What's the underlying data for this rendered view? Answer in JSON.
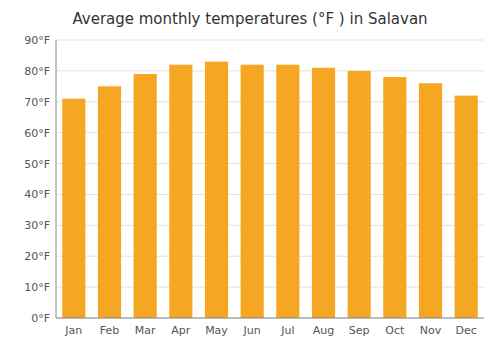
{
  "chart_data": {
    "type": "bar",
    "title": "Average monthly temperatures (°F ) in Salavan",
    "categories": [
      "Jan",
      "Feb",
      "Mar",
      "Apr",
      "May",
      "Jun",
      "Jul",
      "Aug",
      "Sep",
      "Oct",
      "Nov",
      "Dec"
    ],
    "values": [
      71,
      75,
      79,
      82,
      83,
      82,
      82,
      81,
      80,
      78,
      76,
      72
    ],
    "color": "#F5A623",
    "ylim": [
      0,
      90
    ],
    "yticks": [
      {
        "value": 0,
        "label": "0°F"
      },
      {
        "value": 10,
        "label": "10°F"
      },
      {
        "value": 20,
        "label": "20°F"
      },
      {
        "value": 30,
        "label": "30°F"
      },
      {
        "value": 40,
        "label": "40°F"
      },
      {
        "value": 50,
        "label": "50°F"
      },
      {
        "value": 60,
        "label": "60°F"
      },
      {
        "value": 70,
        "label": "70°F"
      },
      {
        "value": 80,
        "label": "80°F"
      },
      {
        "value": 90,
        "label": "90°F"
      }
    ],
    "grid": true
  }
}
